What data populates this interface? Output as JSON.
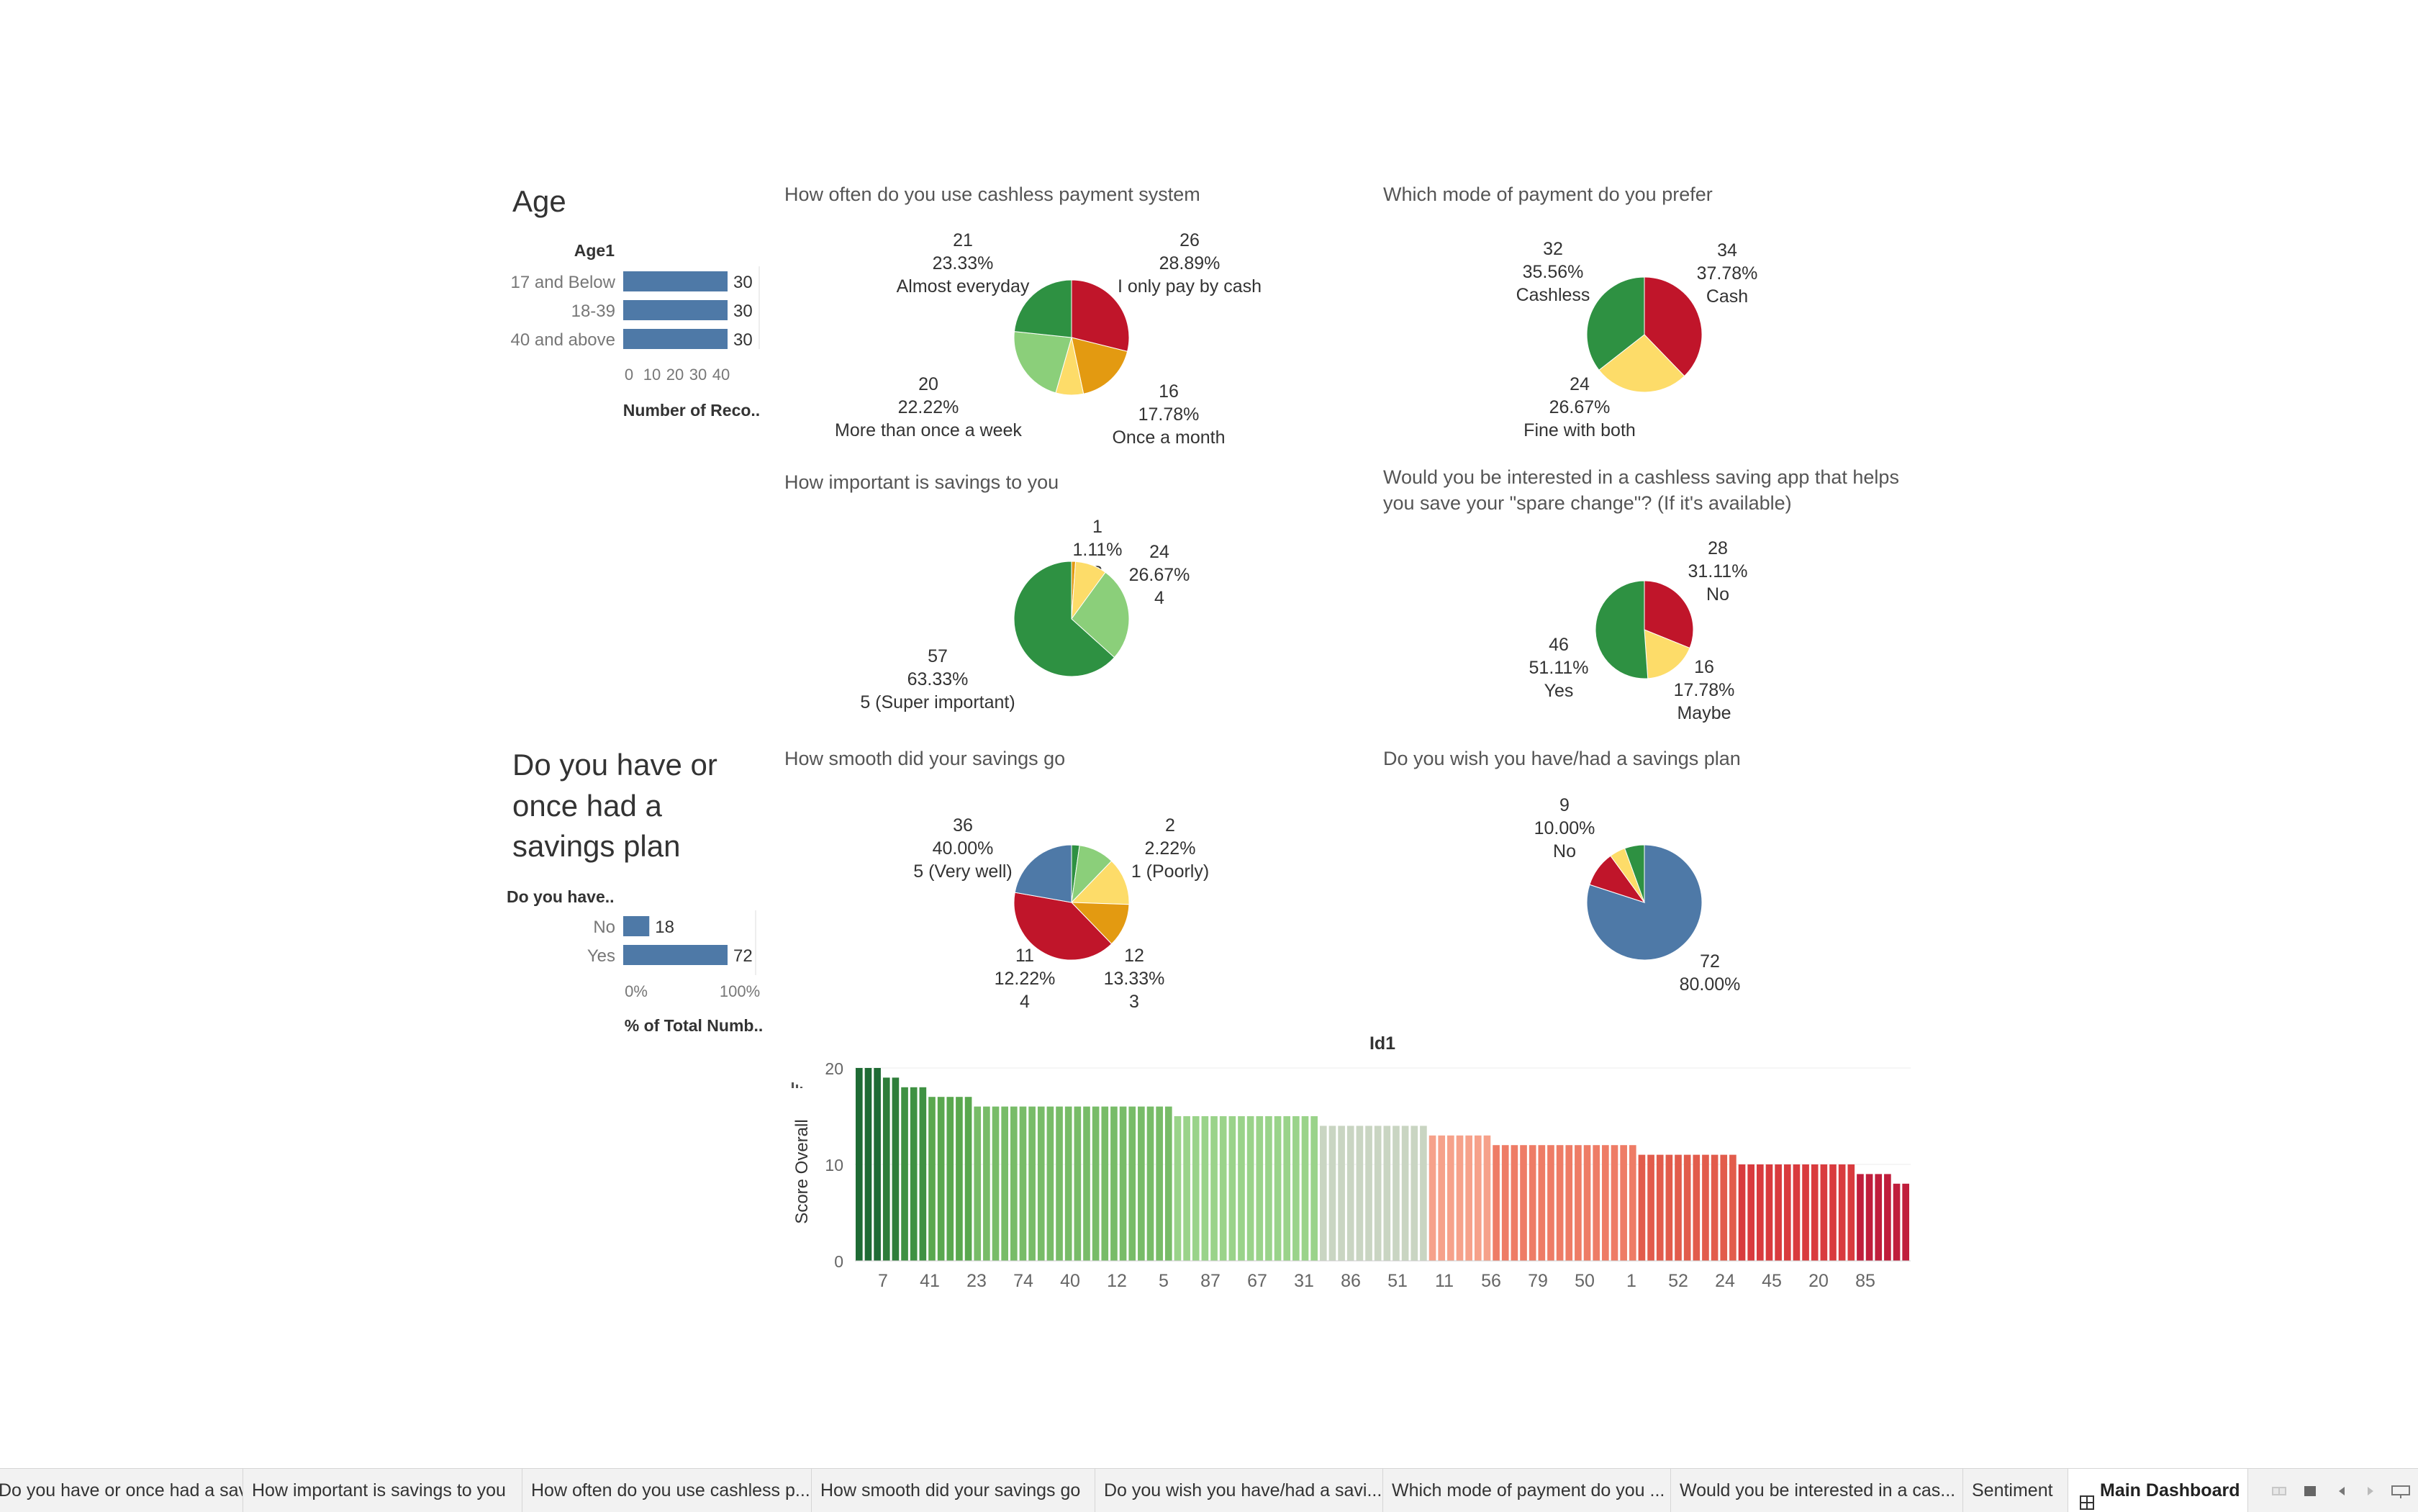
{
  "age_section": {
    "title": "Age",
    "header": "Age1",
    "categories": [
      "17 and Below",
      "18-39",
      "40 and above"
    ],
    "values": [
      30,
      30,
      30
    ],
    "axis_ticks": [
      "0",
      "10",
      "20",
      "30",
      "40"
    ],
    "axis_label": "Number of Reco.."
  },
  "savings_plan_section": {
    "title_lines": [
      "Do you have or",
      "once had a",
      "savings plan"
    ],
    "header": "Do you have..",
    "categories": [
      "No",
      "Yes"
    ],
    "values": [
      18,
      72
    ],
    "axis_ticks": [
      "0%",
      "100%"
    ],
    "axis_label": "% of Total Numb.."
  },
  "colors": {
    "blue": "#4e79a7",
    "dark_green": "#2e9142",
    "light_green": "#8bcf7a",
    "yellow": "#fddc69",
    "orange": "#e39a11",
    "red": "#c0152a"
  },
  "pies": [
    {
      "title_lines": [
        "How often do you use cashless payment system"
      ],
      "slices": [
        {
          "count": "26",
          "pct": "28.89%",
          "label": "I only pay by cash",
          "value": 26,
          "color": "#c0152a"
        },
        {
          "count": "16",
          "pct": "17.78%",
          "label": "Once a month",
          "value": 16,
          "color": "#e39a11"
        },
        {
          "count": "",
          "pct": "",
          "label": "",
          "value": 7,
          "color": "#fddc69"
        },
        {
          "count": "20",
          "pct": "22.22%",
          "label": "More than once a week",
          "value": 20,
          "color": "#8bcf7a"
        },
        {
          "count": "21",
          "pct": "23.33%",
          "label": "Almost everyday",
          "value": 21,
          "color": "#2e9142"
        }
      ]
    },
    {
      "title_lines": [
        "Which mode of payment do you prefer"
      ],
      "slices": [
        {
          "count": "34",
          "pct": "37.78%",
          "label": "Cash",
          "value": 34,
          "color": "#c0152a"
        },
        {
          "count": "24",
          "pct": "26.67%",
          "label": "Fine with both",
          "value": 24,
          "color": "#fddc69"
        },
        {
          "count": "32",
          "pct": "35.56%",
          "label": "Cashless",
          "value": 32,
          "color": "#2e9142"
        }
      ]
    },
    {
      "title_lines": [
        "How important is savings to you"
      ],
      "slices": [
        {
          "count": "1",
          "pct": "1.11%",
          "label": "2",
          "value": 1,
          "color": "#e39a11"
        },
        {
          "count": "",
          "pct": "",
          "label": "",
          "value": 8,
          "color": "#fddc69"
        },
        {
          "count": "24",
          "pct": "26.67%",
          "label": "4",
          "value": 24,
          "color": "#8bcf7a"
        },
        {
          "count": "57",
          "pct": "63.33%",
          "label": "5 (Super important)",
          "value": 57,
          "color": "#2e9142"
        }
      ]
    },
    {
      "title_lines": [
        "Would you be interested in a cashless saving app that helps",
        "you save your \"spare change\"? (If it's available)"
      ],
      "slices": [
        {
          "count": "28",
          "pct": "31.11%",
          "label": "No",
          "value": 28,
          "color": "#c0152a"
        },
        {
          "count": "16",
          "pct": "17.78%",
          "label": "Maybe",
          "value": 16,
          "color": "#fddc69"
        },
        {
          "count": "46",
          "pct": "51.11%",
          "label": "Yes",
          "value": 46,
          "color": "#2e9142"
        }
      ]
    },
    {
      "title_lines": [
        "How smooth did your savings go"
      ],
      "slices": [
        {
          "count": "2",
          "pct": "2.22%",
          "label": "1 (Poorly)",
          "value": 2,
          "color": "#2e9142"
        },
        {
          "count": "",
          "pct": "",
          "label": "",
          "value": 9,
          "color": "#8bcf7a"
        },
        {
          "count": "12",
          "pct": "13.33%",
          "label": "3",
          "value": 12,
          "color": "#fddc69"
        },
        {
          "count": "11",
          "pct": "12.22%",
          "label": "4",
          "value": 11,
          "color": "#e39a11"
        },
        {
          "count": "36",
          "pct": "40.00%",
          "label": "5 (Very well)",
          "value": 36,
          "color": "#c0152a"
        },
        {
          "count": "",
          "pct": "",
          "label": "",
          "value": 20,
          "color": "#4e79a7"
        }
      ]
    },
    {
      "title_lines": [
        "Do you wish you have/had a savings plan"
      ],
      "slices": [
        {
          "count": "72",
          "pct": "80.00%",
          "label": "",
          "value": 72,
          "color": "#4e79a7"
        },
        {
          "count": "9",
          "pct": "10.00%",
          "label": "No",
          "value": 9,
          "color": "#c0152a"
        },
        {
          "count": "",
          "pct": "",
          "label": "",
          "value": 4,
          "color": "#fddc69"
        },
        {
          "count": "",
          "pct": "",
          "label": "",
          "value": 5,
          "color": "#2e9142"
        }
      ]
    }
  ],
  "chart_data": {
    "type": "bar",
    "title": "Id1",
    "ylabel": "Score Overall",
    "ylim": [
      0,
      20
    ],
    "y_ticks": [
      "0",
      "10",
      "20"
    ],
    "x_tick_labels": [
      "7",
      "41",
      "23",
      "74",
      "40",
      "12",
      "5",
      "87",
      "67",
      "31",
      "86",
      "51",
      "11",
      "56",
      "79",
      "50",
      "1",
      "52",
      "24",
      "45",
      "20",
      "85"
    ],
    "values": [
      20,
      20,
      20,
      19,
      19,
      18,
      18,
      18,
      17,
      17,
      17,
      17,
      17,
      16,
      16,
      16,
      16,
      16,
      16,
      16,
      16,
      16,
      16,
      16,
      16,
      16,
      16,
      16,
      16,
      16,
      16,
      16,
      16,
      16,
      16,
      15,
      15,
      15,
      15,
      15,
      15,
      15,
      15,
      15,
      15,
      15,
      15,
      15,
      15,
      15,
      15,
      14,
      14,
      14,
      14,
      14,
      14,
      14,
      14,
      14,
      14,
      14,
      14,
      13,
      13,
      13,
      13,
      13,
      13,
      13,
      12,
      12,
      12,
      12,
      12,
      12,
      12,
      12,
      12,
      12,
      12,
      12,
      12,
      12,
      12,
      12,
      11,
      11,
      11,
      11,
      11,
      11,
      11,
      11,
      11,
      11,
      11,
      10,
      10,
      10,
      10,
      10,
      10,
      10,
      10,
      10,
      10,
      10,
      10,
      10,
      9,
      9,
      9,
      9,
      8,
      8
    ],
    "colors": [
      "#1f6b35",
      "#2e7d3a",
      "#3f9143",
      "#5aa84f",
      "#78bc68",
      "#9ad38a",
      "#c9d5c2",
      "#f6a18a",
      "#ee7c66",
      "#e25c4c",
      "#d93b3e",
      "#c01e3c"
    ]
  },
  "tabs": [
    "Do you have or once had a savin...",
    "How important is savings to you",
    "How often do you use cashless p...",
    "How smooth did your savings go",
    "Do you wish you have/had a savi...",
    "Which mode of payment do you ...",
    "Would you be interested in a cas...",
    "Sentiment",
    "Main Dashboard"
  ]
}
